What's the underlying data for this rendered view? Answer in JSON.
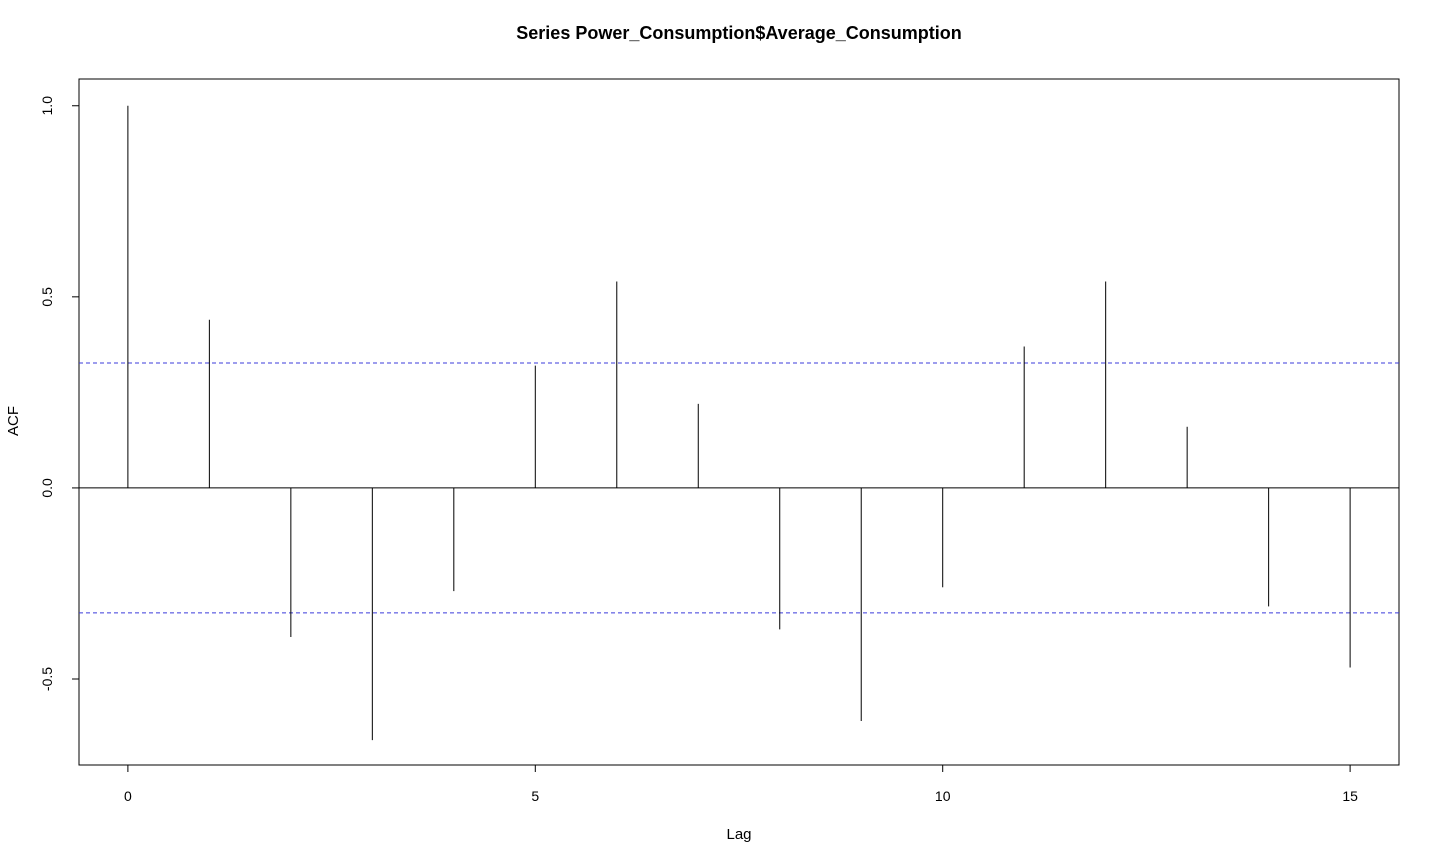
{
  "chart_data": {
    "type": "bar",
    "subtype": "acf",
    "title": "Series  Power_Consumption$Average_Consumption",
    "xlabel": "Lag",
    "ylabel": "ACF",
    "x": [
      0,
      1,
      2,
      3,
      4,
      5,
      6,
      7,
      8,
      9,
      10,
      11,
      12,
      13,
      14,
      15
    ],
    "values": [
      1.0,
      0.44,
      -0.39,
      -0.66,
      -0.27,
      0.32,
      0.54,
      0.22,
      -0.37,
      -0.61,
      -0.26,
      0.37,
      0.54,
      0.16,
      -0.31,
      -0.47
    ],
    "xlim": [
      -0.6,
      15.6
    ],
    "ylim": [
      -0.725,
      1.07
    ],
    "x_ticks": [
      0,
      5,
      10,
      15
    ],
    "x_tick_labels": [
      "0",
      "5",
      "10",
      "15"
    ],
    "y_ticks": [
      -0.5,
      0.0,
      0.5,
      1.0
    ],
    "y_tick_labels": [
      "-0.5",
      "0.0",
      "0.5",
      "1.0"
    ],
    "confidence_bounds": [
      0.327,
      -0.327
    ],
    "zero_line": 0,
    "grid": false,
    "legend": "none",
    "colors": {
      "bars": "#000000",
      "confidence": "#3b3bdb",
      "axes": "#000000"
    }
  }
}
